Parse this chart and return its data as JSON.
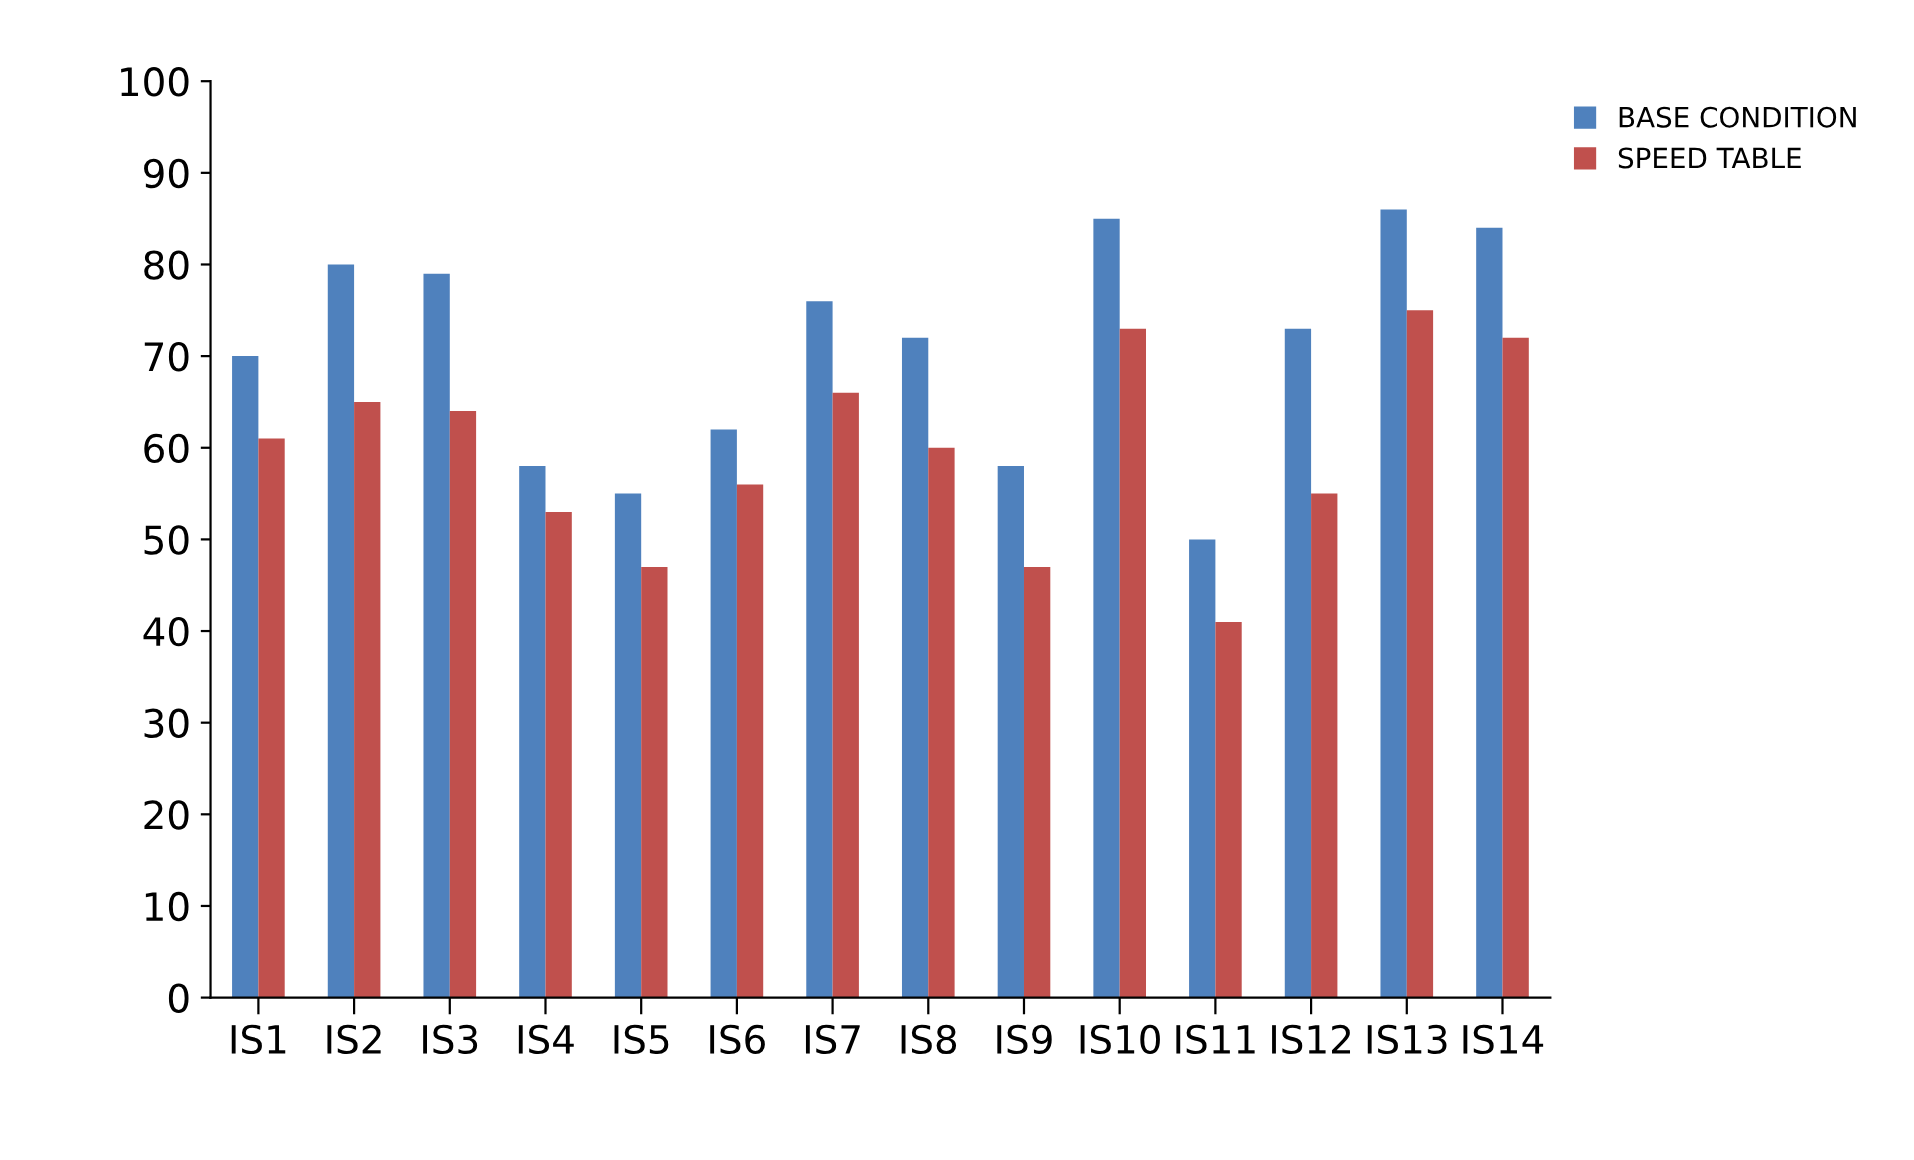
{
  "chart_data": {
    "type": "bar",
    "categories": [
      "IS1",
      "IS2",
      "IS3",
      "IS4",
      "IS5",
      "IS6",
      "IS7",
      "IS8",
      "IS9",
      "IS10",
      "IS11",
      "IS12",
      "IS13",
      "IS14"
    ],
    "series": [
      {
        "name": "BASE CONDITION",
        "color": "#4f81bd",
        "values": [
          70,
          80,
          79,
          58,
          55,
          62,
          76,
          72,
          58,
          85,
          50,
          73,
          86,
          84
        ]
      },
      {
        "name": "SPEED TABLE",
        "color": "#c0504d",
        "values": [
          61,
          65,
          64,
          53,
          47,
          56,
          66,
          60,
          47,
          73,
          41,
          55,
          75,
          72
        ]
      }
    ],
    "ylim": [
      0,
      100
    ],
    "yticks": [
      0,
      10,
      20,
      30,
      40,
      50,
      60,
      70,
      80,
      90,
      100
    ],
    "grid": false,
    "legend": "top right"
  }
}
